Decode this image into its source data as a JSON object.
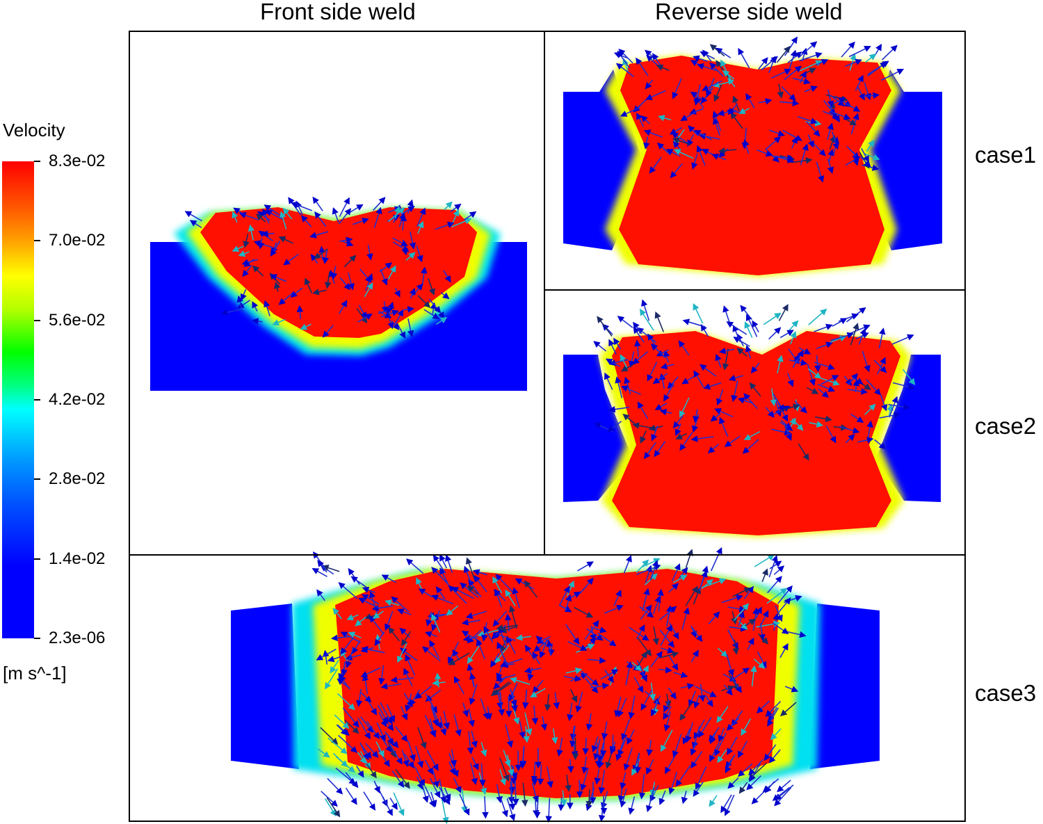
{
  "headers": {
    "front": "Front side weld",
    "reverse": "Reverse side weld"
  },
  "cases": [
    "case1",
    "case2",
    "case3"
  ],
  "legend": {
    "title": "Velocity",
    "units": "[m s^-1]",
    "ticks": [
      "8.3e-02",
      "7.0e-02",
      "5.6e-02",
      "4.2e-02",
      "2.8e-02",
      "1.4e-02",
      "2.3e-06"
    ]
  },
  "colors": {
    "max": "#ff0000",
    "high": "#ffff00",
    "mid": "#00ff00",
    "low_mid": "#00ffff",
    "min": "#0000ff",
    "frame": "#000000"
  },
  "icons": [
    "velocity-vector-arrow-icon"
  ]
}
